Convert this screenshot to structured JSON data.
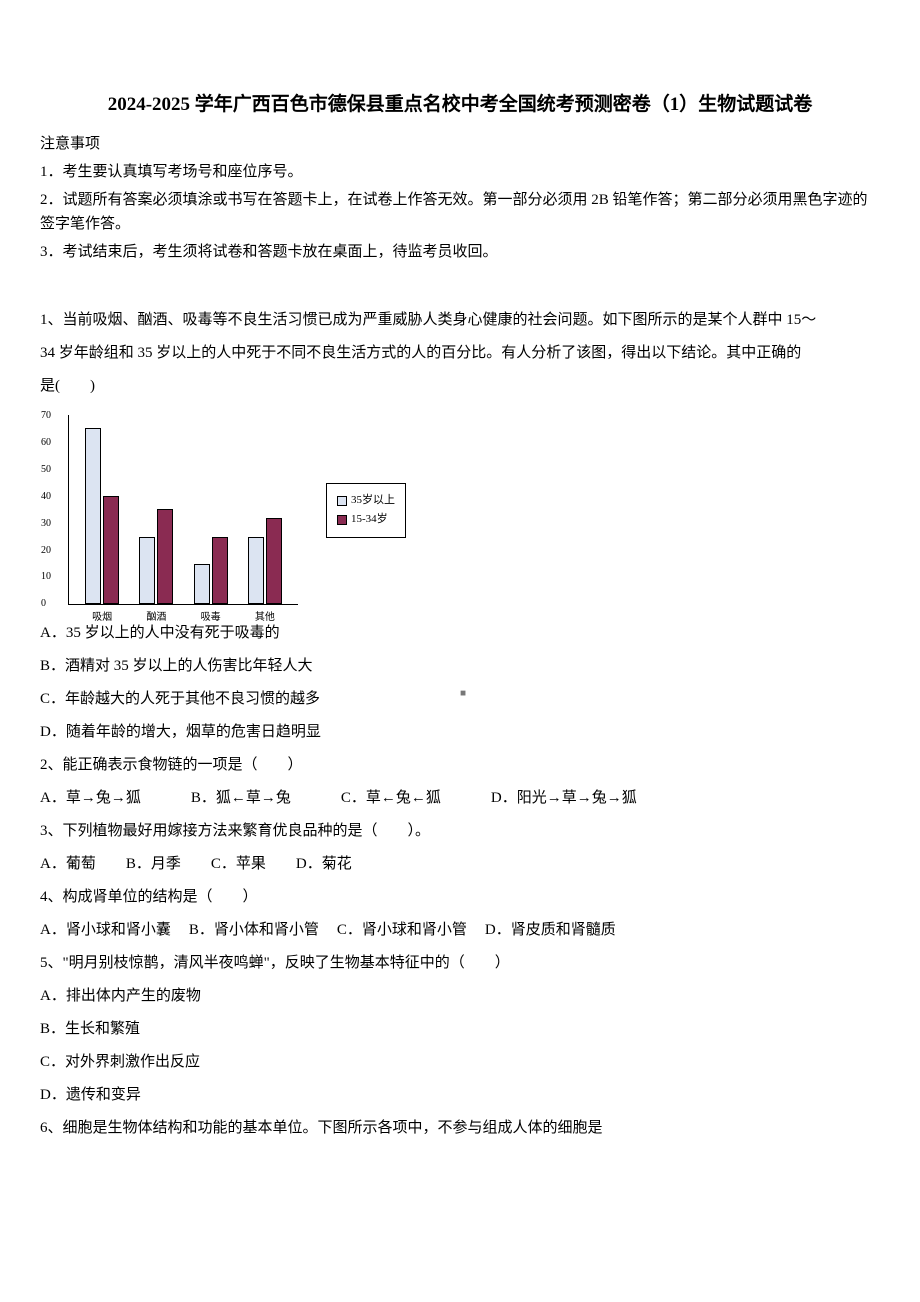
{
  "title": "2024-2025 学年广西百色市德保县重点名校中考全国统考预测密卷（1）生物试题试卷",
  "subtitle": "注意事项",
  "notices": [
    "1．考生要认真填写考场号和座位序号。",
    "2．试题所有答案必须填涂或书写在答题卡上，在试卷上作答无效。第一部分必须用 2B 铅笔作答；第二部分必须用黑色字迹的签字笔作答。",
    "3．考试结束后，考生须将试卷和答题卡放在桌面上，待监考员收回。"
  ],
  "q1": {
    "stem1": "1、当前吸烟、酗酒、吸毒等不良生活习惯已成为严重威胁人类身心健康的社会问题。如下图所示的是某个人群中 15～",
    "stem2": "34 岁年龄组和 35 岁以上的人中死于不同不良生活方式的人的百分比。有人分析了该图，得出以下结论。其中正确的",
    "stem3": "是(　　)",
    "optA": "A．35 岁以上的人中没有死于吸毒的",
    "optB": "B．酒精对 35 岁以上的人伤害比年轻人大",
    "optC": "C．年龄越大的人死于其他不良习惯的越多",
    "optD": "D．随着年龄的增大，烟草的危害日趋明显"
  },
  "chart": {
    "categories": [
      "吸烟",
      "酗酒",
      "吸毒",
      "其他"
    ],
    "series_35plus": [
      65,
      25,
      15,
      25
    ],
    "series_15_34": [
      40,
      35,
      25,
      32
    ],
    "ymax": 70,
    "yticks": [
      "0",
      "10",
      "20",
      "30",
      "40",
      "50",
      "60",
      "70"
    ],
    "color_35plus": "#dce4f2",
    "color_15_34": "#8a2b52",
    "border_color": "#000000",
    "legend_35plus": "35岁以上",
    "legend_15_34": "15-34岁"
  },
  "q2": {
    "stem": "2、能正确表示食物链的一项是（　　）",
    "optA": "A．草→兔→狐",
    "optB": "B．狐←草→兔",
    "optC": "C．草←兔←狐",
    "optD": "D．阳光→草→兔→狐"
  },
  "q3": {
    "stem": "3、下列植物最好用嫁接方法来繁育优良品种的是（　　）。",
    "optA": "A．葡萄",
    "optB": "B．月季",
    "optC": "C．苹果",
    "optD": "D．菊花"
  },
  "q4": {
    "stem": "4、构成肾单位的结构是（　　）",
    "optA": "A．肾小球和肾小囊",
    "optB": "B．肾小体和肾小管",
    "optC": "C．肾小球和肾小管",
    "optD": "D．肾皮质和肾髓质"
  },
  "q5": {
    "stem": "5、\"明月别枝惊鹊，清风半夜鸣蝉\"，反映了生物基本特征中的（　　）",
    "optA": "A．排出体内产生的废物",
    "optB": "B．生长和繁殖",
    "optC": "C．对外界刺激作出反应",
    "optD": "D．遗传和变异"
  },
  "q6": {
    "stem": "6、细胞是生物体结构和功能的基本单位。下图所示各项中，不参与组成人体的细胞是"
  },
  "page_marker": "■"
}
